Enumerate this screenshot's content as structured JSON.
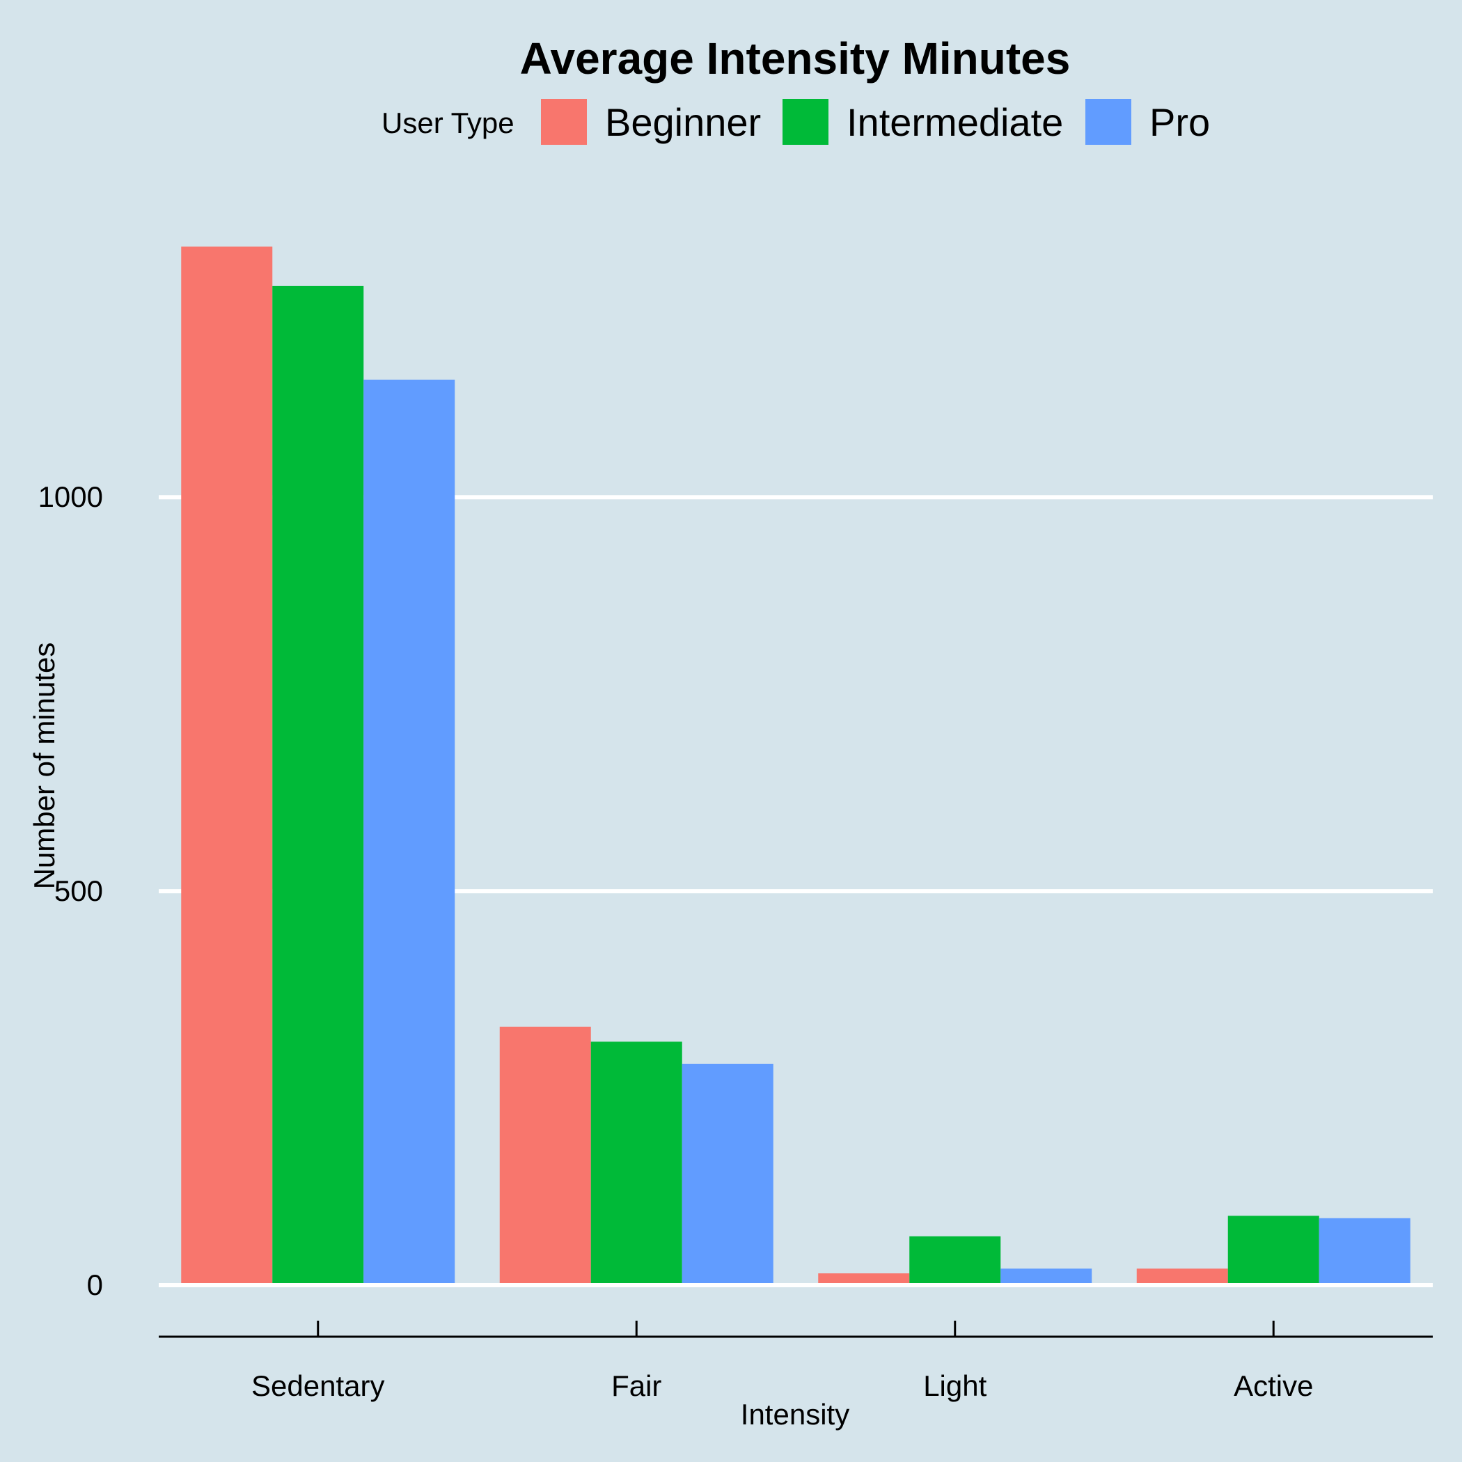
{
  "chart_data": {
    "type": "bar",
    "title": "Average Intensity Minutes",
    "xlabel": "Intensity",
    "ylabel": "Number of minutes",
    "categories": [
      "Sedentary",
      "Fair",
      "Light",
      "Active"
    ],
    "legend_title": "User Type",
    "legend_position": "top",
    "ylim": [
      0,
      1330
    ],
    "yticks": [
      0,
      500,
      1000
    ],
    "grid": true,
    "series": [
      {
        "name": "Beginner",
        "color": "#F8766D",
        "values": [
          1318,
          328,
          15,
          21
        ]
      },
      {
        "name": "Intermediate",
        "color": "#00BA38",
        "values": [
          1268,
          309,
          62,
          88
        ]
      },
      {
        "name": "Pro",
        "color": "#619CFF",
        "values": [
          1149,
          281,
          21,
          85
        ]
      }
    ]
  },
  "colors": {
    "background": "#d5e4eb",
    "gridline": "#ffffff",
    "axis": "#000000"
  }
}
